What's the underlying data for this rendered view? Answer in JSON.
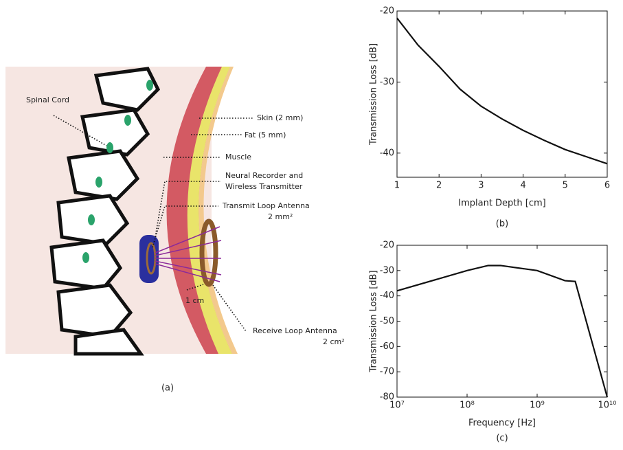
{
  "diagram": {
    "labels": [
      "Spinal Cord",
      "Skin (2 mm)",
      "Fat (5 mm)",
      "Muscle",
      "Neural Recorder and",
      "Wireless Transmitter",
      "Transmit Loop Antenna",
      "2 mm²",
      "1 cm",
      "Receive Loop Antenna",
      "2 cm²"
    ],
    "caption": "(a)"
  },
  "chart_data": [
    {
      "type": "line",
      "xlabel": "Implant Depth [cm]",
      "ylabel": "Transmission Loss [dB]",
      "caption": "(b)",
      "x": [
        1,
        1.5,
        2,
        2.5,
        3,
        3.5,
        4,
        4.5,
        5,
        5.5,
        6
      ],
      "series": [
        {
          "color": "#111111",
          "values": [
            -21,
            -24.8,
            -27.8,
            -31,
            -33.4,
            -35.2,
            -36.8,
            -38.2,
            -39.5,
            -40.5,
            -41.5
          ]
        }
      ],
      "xlim": [
        1,
        6
      ],
      "ylim": [
        -43.4,
        -20
      ],
      "xticks": [
        1,
        2,
        3,
        4,
        5,
        6
      ],
      "yticks": [
        -20,
        -30,
        -40
      ],
      "log": false
    },
    {
      "type": "line",
      "xlabel": "Frequency [Hz]",
      "ylabel": "Transmission Loss [dB]",
      "caption": "(c)",
      "x": [
        10000000,
        100000000,
        200000000,
        300000000,
        1000000000,
        2500000000,
        3500000000,
        10000000000
      ],
      "series": [
        {
          "color": "#111111",
          "values": [
            -38,
            -30,
            -28,
            -28,
            -30,
            -34,
            -34.3,
            -80
          ]
        }
      ],
      "xlim": [
        10000000,
        10000000000
      ],
      "ylim": [
        -80,
        -20
      ],
      "xticks": [
        {
          "value": 10000000,
          "label": "10⁷"
        },
        {
          "value": 100000000,
          "label": "10⁸"
        },
        {
          "value": 1000000000,
          "label": "10⁹"
        },
        {
          "value": 10000000000,
          "label": "10¹⁰"
        }
      ],
      "yticks": [
        -20,
        -30,
        -40,
        -50,
        -60,
        -70,
        -80
      ],
      "log": true
    }
  ]
}
